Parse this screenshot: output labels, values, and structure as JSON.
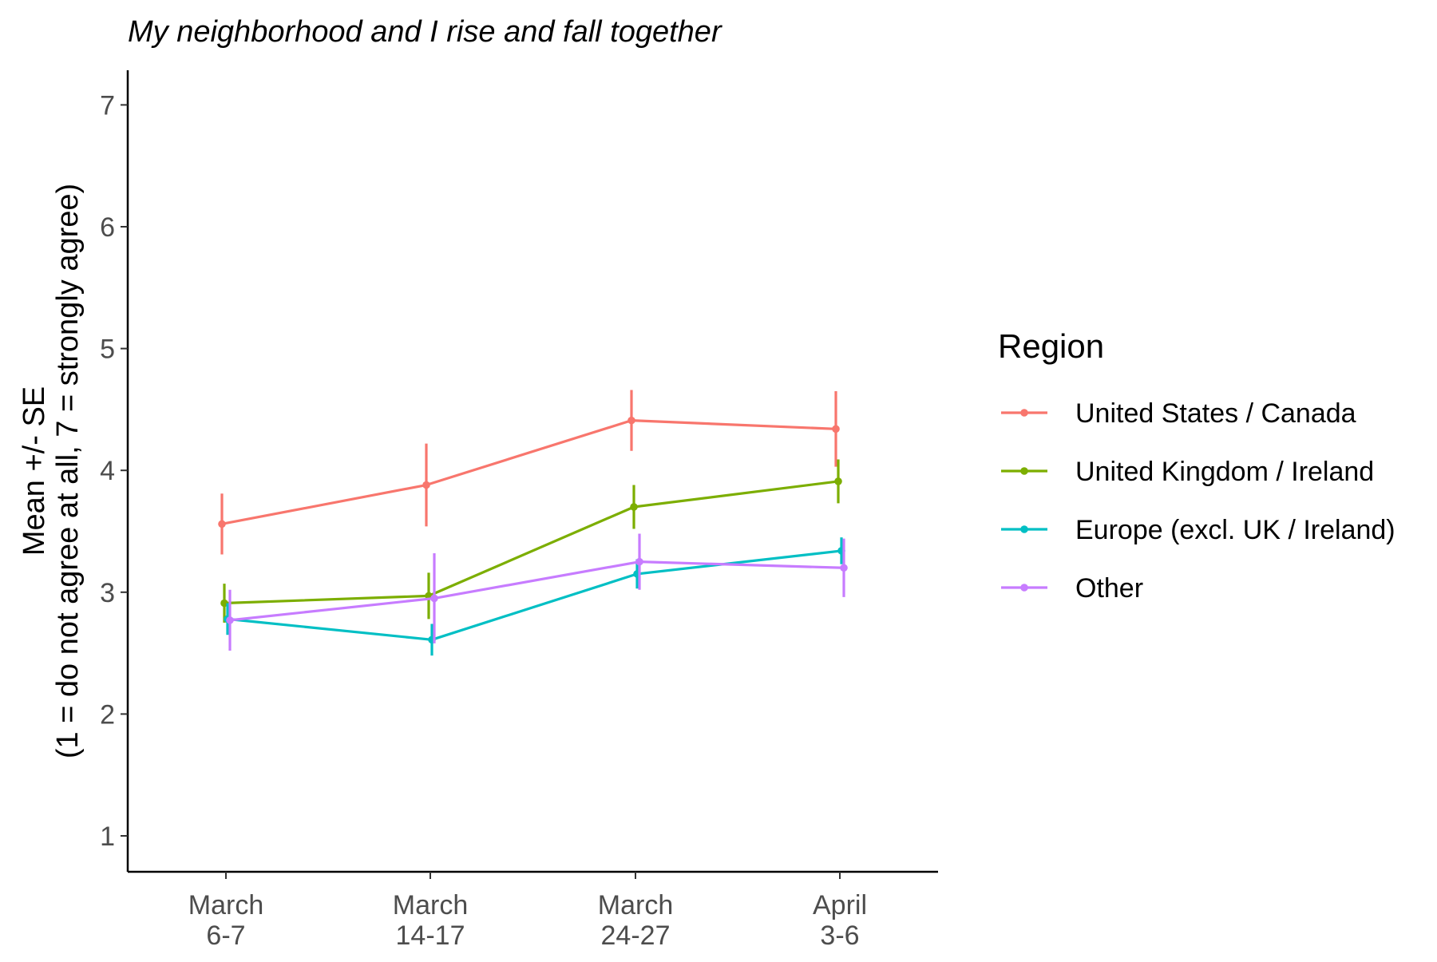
{
  "chart_data": {
    "type": "line",
    "title": "My neighborhood and I rise and fall together",
    "xlabel": "",
    "ylabel_lines": [
      "Mean +/- SE",
      "(1 = do not agree at all, 7 = strongly agree)"
    ],
    "categories": [
      [
        "March",
        "6-7"
      ],
      [
        "March",
        "14-17"
      ],
      [
        "March",
        "24-27"
      ],
      [
        "April",
        "3-6"
      ]
    ],
    "yticks": [
      "1",
      "2",
      "3",
      "4",
      "5",
      "6",
      "7"
    ],
    "ylim": [
      0.7,
      7.5
    ],
    "grid": false,
    "error_bars": "standard error",
    "legend": {
      "title": "Region",
      "placement": "right"
    },
    "series": [
      {
        "name": "United States / Canada",
        "color": "#F8766D",
        "values": [
          3.56,
          3.88,
          4.41,
          4.34
        ],
        "se": [
          0.25,
          0.34,
          0.25,
          0.31
        ]
      },
      {
        "name": "United Kingdom / Ireland",
        "color": "#7CAE00",
        "values": [
          2.91,
          2.97,
          3.7,
          3.91
        ],
        "se": [
          0.16,
          0.19,
          0.18,
          0.18
        ]
      },
      {
        "name": "Europe (excl. UK / Ireland)",
        "color": "#00BFC4",
        "values": [
          2.78,
          2.61,
          3.15,
          3.34
        ],
        "se": [
          0.13,
          0.13,
          0.12,
          0.11
        ]
      },
      {
        "name": "Other",
        "color": "#C77CFF",
        "values": [
          2.77,
          2.95,
          3.25,
          3.2
        ],
        "se": [
          0.25,
          0.37,
          0.23,
          0.24
        ]
      }
    ]
  }
}
